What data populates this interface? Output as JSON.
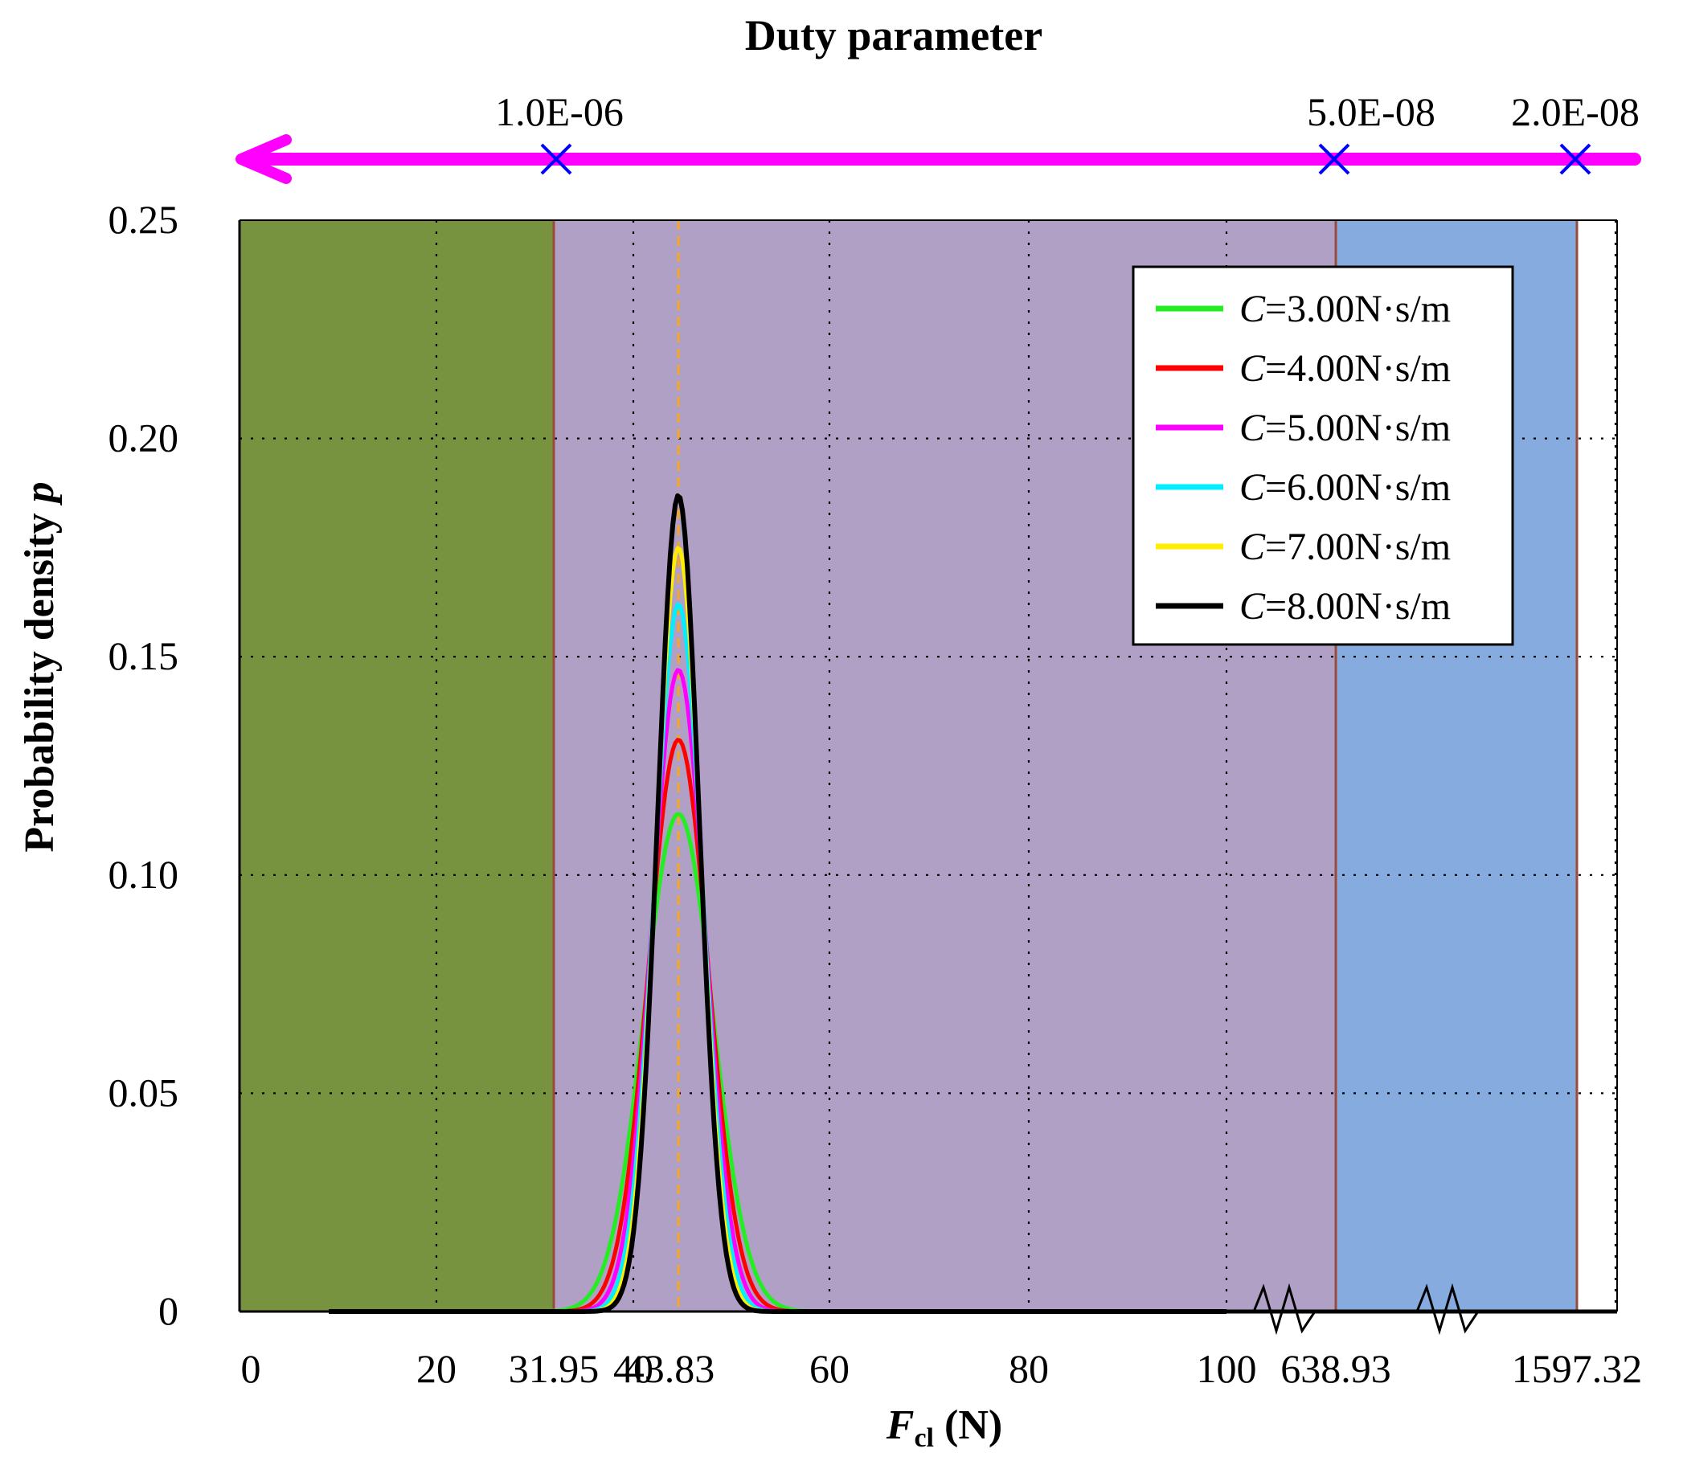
{
  "chart_data": {
    "type": "line",
    "title": "Duty parameter",
    "xlabel": {
      "main": "F",
      "sub": "cl",
      "unit": " (N)"
    },
    "ylabel": {
      "main": "Probability density ",
      "var": "p"
    },
    "ylim": [
      0,
      0.25
    ],
    "y_ticks": [
      "0",
      "0.05",
      "0.10",
      "0.15",
      "0.20",
      "0.25"
    ],
    "y_tick_values": [
      0,
      0.05,
      0.1,
      0.15,
      0.2,
      0.25
    ],
    "x_ticks": [
      {
        "label": "0",
        "value": 0
      },
      {
        "label": "20",
        "value": 20
      },
      {
        "label": "31.95",
        "value": 31.95
      },
      {
        "label": "40",
        "value": 40
      },
      {
        "label": "43.83",
        "value": 43.83
      },
      {
        "label": "60",
        "value": 60
      },
      {
        "label": "80",
        "value": 80
      },
      {
        "label": "100",
        "value": 100
      },
      {
        "label": "638.93",
        "value": 638.93
      },
      {
        "label": "1597.32",
        "value": 1597.32
      }
    ],
    "grid": true,
    "axis_breaks": [
      "between 100 and 638.93",
      "between 638.93 and 1597.32"
    ],
    "regions": [
      {
        "from": "0",
        "to": "31.95",
        "color": "#78933f"
      },
      {
        "from": "31.95",
        "to": "638.93",
        "color": "#b1a0c6"
      },
      {
        "from": "638.93",
        "to": "1597.32",
        "color": "#86abdf"
      }
    ],
    "mean_line": {
      "x": 43.83,
      "color": "#f5a623",
      "style": "dashed"
    },
    "duty_parameter_axis": {
      "color": "#ff00ff",
      "direction": "left",
      "marks": [
        {
          "label": "1.0E-06",
          "at_force": "31.95"
        },
        {
          "label": "5.0E-08",
          "at_force": "638.93"
        },
        {
          "label": "2.0E-08",
          "at_force": "1597.32"
        }
      ],
      "marker_color": "#0000ff"
    },
    "legend_position": "top-right",
    "series": [
      {
        "name": "=3.00N·s/m",
        "var": "C",
        "color": "#22ee22",
        "mean": 43.83,
        "peak": 0.114
      },
      {
        "name": "=4.00N·s/m",
        "var": "C",
        "color": "#ff0000",
        "mean": 43.83,
        "peak": 0.131
      },
      {
        "name": "=5.00N·s/m",
        "var": "C",
        "color": "#ff00ff",
        "mean": 43.83,
        "peak": 0.147
      },
      {
        "name": "=6.00N·s/m",
        "var": "C",
        "color": "#00eeff",
        "mean": 43.83,
        "peak": 0.162
      },
      {
        "name": "=7.00N·s/m",
        "var": "C",
        "color": "#ffee00",
        "mean": 43.83,
        "peak": 0.175
      },
      {
        "name": "=8.00N·s/m",
        "var": "C",
        "color": "#000000",
        "mean": 43.83,
        "peak": 0.187
      }
    ]
  }
}
